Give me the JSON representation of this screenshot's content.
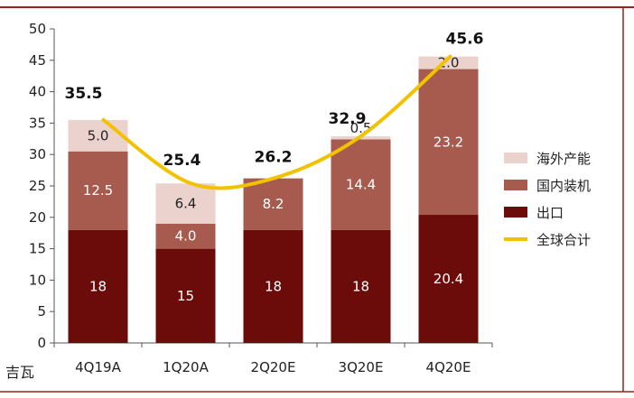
{
  "chart_data": {
    "type": "bar",
    "stacked": true,
    "unit_label": "吉瓦",
    "categories": [
      "4Q19A",
      "1Q20A",
      "2Q20E",
      "3Q20E",
      "4Q20E"
    ],
    "series": [
      {
        "name": "出口",
        "values": [
          18,
          15,
          18,
          18,
          20.4
        ],
        "labels": [
          "18",
          "15",
          "18",
          "18",
          "20.4"
        ],
        "color": "#6b0c0a",
        "label_color": "#ffffff"
      },
      {
        "name": "国内装机",
        "values": [
          12.5,
          4.0,
          8.2,
          14.4,
          23.2
        ],
        "labels": [
          "12.5",
          "4.0",
          "8.2",
          "14.4",
          "23.2"
        ],
        "color": "#a65b4e",
        "label_color": "#ffffff"
      },
      {
        "name": "海外产能",
        "values": [
          5.0,
          6.4,
          0,
          0.5,
          2.0
        ],
        "labels": [
          "5.0",
          "6.4",
          "",
          "0.5",
          "2.0"
        ],
        "color": "#ecd2cd",
        "label_color": "#222222"
      }
    ],
    "line_series": {
      "name": "全球合计",
      "values": [
        35.5,
        25.4,
        26.2,
        32.9,
        45.6
      ],
      "labels": [
        "35.5",
        "25.4",
        "26.2",
        "32.9",
        "45.6"
      ],
      "color": "#f2c200"
    },
    "ylim": [
      0,
      50
    ],
    "yticks": [
      0,
      5,
      10,
      15,
      20,
      25,
      30,
      35,
      40,
      45,
      50
    ],
    "grid": false,
    "legend_position": "right",
    "legend_order": [
      "海外产能",
      "国内装机",
      "出口",
      "全球合计"
    ]
  }
}
